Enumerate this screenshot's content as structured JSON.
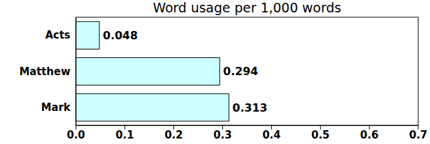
{
  "chart_data": {
    "type": "bar",
    "title": "Word usage per 1,000 words",
    "orientation": "horizontal",
    "categories": [
      "Acts",
      "Matthew",
      "Mark"
    ],
    "values": [
      0.048,
      0.294,
      0.313
    ],
    "color": "#ccffff",
    "xlim": [
      0,
      0.7
    ],
    "xticks": [
      {
        "value": 0,
        "label": "0.0"
      },
      0.1,
      0.2,
      0.3,
      0.4,
      0.5,
      0.6,
      0.7
    ],
    "grid": false,
    "data_labels": true
  }
}
